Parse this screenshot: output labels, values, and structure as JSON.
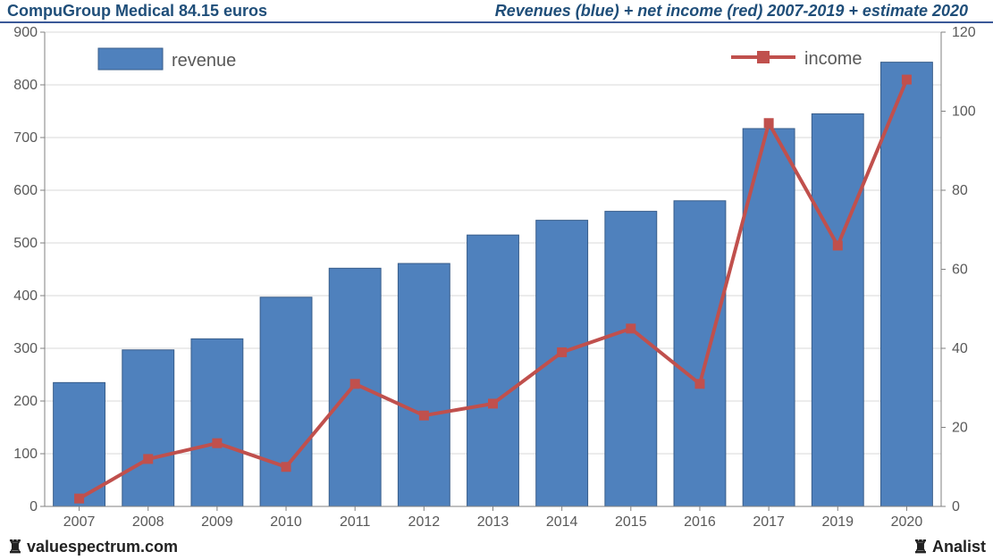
{
  "header": {
    "title_left": "CompuGroup Medical 84.15 euros",
    "title_right": "Revenues (blue) + net income (red) 2007-2019 + estimate 2020"
  },
  "footer": {
    "left": "valuespectrum.com",
    "right": "Analist"
  },
  "chart": {
    "type": "bar+line",
    "categories": [
      "2007",
      "2008",
      "2009",
      "2010",
      "2011",
      "2012",
      "2013",
      "2014",
      "2015",
      "2016",
      "2017",
      "2019",
      "2020"
    ],
    "revenue_values": [
      235,
      297,
      318,
      397,
      452,
      461,
      515,
      543,
      560,
      580,
      717,
      745,
      843
    ],
    "income_values": [
      2,
      12,
      16,
      10,
      31,
      23,
      26,
      39,
      45,
      31,
      97,
      66,
      108
    ],
    "bar_color": "#4f81bd",
    "bar_border_color": "#385d8a",
    "line_color": "#c0504d",
    "line_width": 4,
    "marker_size": 10,
    "y_left": {
      "min": 0,
      "max": 900,
      "step": 100
    },
    "y_right": {
      "min": 0,
      "max": 120,
      "step": 20
    },
    "gridline_color": "#d9d9d9",
    "axis_color": "#808080",
    "background_color": "#ffffff",
    "text_color": "#595959",
    "legend": {
      "revenue": "revenue",
      "income": "income"
    },
    "bar_width_ratio": 0.75,
    "label_fontsize": 16,
    "legend_fontsize": 20
  }
}
